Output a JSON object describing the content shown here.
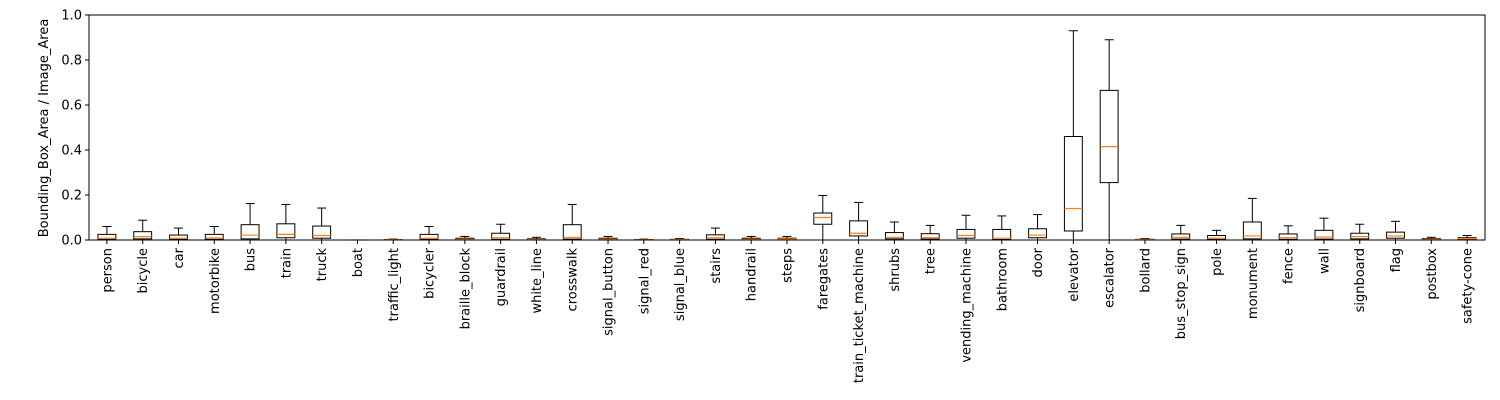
{
  "chart_data": {
    "type": "box",
    "title": "",
    "xlabel": "",
    "ylabel": "Bounding_Box_Area / Image_Area",
    "ylim": [
      0,
      1.0
    ],
    "yticks": [
      "0.0",
      "0.2",
      "0.4",
      "0.6",
      "0.8",
      "1.0"
    ],
    "grid": false,
    "colors": {
      "box": "#000000",
      "median": "#ff7f0e"
    },
    "categories": [
      "person",
      "bicycle",
      "car",
      "motorbike",
      "bus",
      "train",
      "truck",
      "boat",
      "traffic_light",
      "bicycler",
      "braille_block",
      "guardrail",
      "white_line",
      "crosswalk",
      "signal_button",
      "signal_red",
      "signal_blue",
      "stairs",
      "handrail",
      "steps",
      "faregates",
      "train_ticket_machine",
      "shrubs",
      "tree",
      "vending_machine",
      "bathroom",
      "door",
      "elevator",
      "escalator",
      "bollard",
      "bus_stop_sign",
      "pole",
      "monument",
      "fence",
      "wall",
      "signboard",
      "flag",
      "postbox",
      "safety-cone"
    ],
    "boxes": [
      {
        "min": 0.0,
        "q1": 0.003,
        "median": 0.008,
        "q3": 0.025,
        "max": 0.06
      },
      {
        "min": 0.0,
        "q1": 0.005,
        "median": 0.015,
        "q3": 0.037,
        "max": 0.088
      },
      {
        "min": 0.0,
        "q1": 0.003,
        "median": 0.008,
        "q3": 0.022,
        "max": 0.053
      },
      {
        "min": 0.0,
        "q1": 0.003,
        "median": 0.009,
        "q3": 0.025,
        "max": 0.06
      },
      {
        "min": 0.0,
        "q1": 0.005,
        "median": 0.022,
        "q3": 0.068,
        "max": 0.162
      },
      {
        "min": 0.0,
        "q1": 0.01,
        "median": 0.025,
        "q3": 0.072,
        "max": 0.158
      },
      {
        "min": 0.0,
        "q1": 0.008,
        "median": 0.02,
        "q3": 0.062,
        "max": 0.142
      },
      {
        "min": 0.0,
        "q1": 0.0,
        "median": 0.0,
        "q3": 0.0,
        "max": 0.0
      },
      {
        "min": 0.0,
        "q1": 0.0,
        "median": 0.001,
        "q3": 0.002,
        "max": 0.004
      },
      {
        "min": 0.0,
        "q1": 0.003,
        "median": 0.008,
        "q3": 0.025,
        "max": 0.06
      },
      {
        "min": 0.0,
        "q1": 0.001,
        "median": 0.003,
        "q3": 0.008,
        "max": 0.016
      },
      {
        "min": 0.0,
        "q1": 0.003,
        "median": 0.01,
        "q3": 0.03,
        "max": 0.07
      },
      {
        "min": 0.0,
        "q1": 0.001,
        "median": 0.002,
        "q3": 0.005,
        "max": 0.012
      },
      {
        "min": 0.0,
        "q1": 0.004,
        "median": 0.012,
        "q3": 0.068,
        "max": 0.158
      },
      {
        "min": 0.0,
        "q1": 0.001,
        "median": 0.004,
        "q3": 0.008,
        "max": 0.016
      },
      {
        "min": 0.0,
        "q1": 0.0,
        "median": 0.001,
        "q3": 0.002,
        "max": 0.004
      },
      {
        "min": 0.0,
        "q1": 0.001,
        "median": 0.002,
        "q3": 0.003,
        "max": 0.006
      },
      {
        "min": 0.0,
        "q1": 0.003,
        "median": 0.01,
        "q3": 0.023,
        "max": 0.053
      },
      {
        "min": 0.0,
        "q1": 0.001,
        "median": 0.004,
        "q3": 0.008,
        "max": 0.016
      },
      {
        "min": 0.0,
        "q1": 0.002,
        "median": 0.005,
        "q3": 0.008,
        "max": 0.016
      },
      {
        "min": 0.0,
        "q1": 0.07,
        "median": 0.1,
        "q3": 0.12,
        "max": 0.198
      },
      {
        "min": 0.0,
        "q1": 0.018,
        "median": 0.03,
        "q3": 0.085,
        "max": 0.167
      },
      {
        "min": 0.0,
        "q1": 0.005,
        "median": 0.012,
        "q3": 0.033,
        "max": 0.08
      },
      {
        "min": 0.0,
        "q1": 0.004,
        "median": 0.01,
        "q3": 0.028,
        "max": 0.065
      },
      {
        "min": 0.0,
        "q1": 0.008,
        "median": 0.02,
        "q3": 0.047,
        "max": 0.11
      },
      {
        "min": 0.0,
        "q1": 0.002,
        "median": 0.008,
        "q3": 0.047,
        "max": 0.107
      },
      {
        "min": 0.0,
        "q1": 0.01,
        "median": 0.022,
        "q3": 0.05,
        "max": 0.113
      },
      {
        "min": 0.0,
        "q1": 0.04,
        "median": 0.14,
        "q3": 0.46,
        "max": 0.93
      },
      {
        "min": 0.0,
        "q1": 0.255,
        "median": 0.415,
        "q3": 0.665,
        "max": 0.89
      },
      {
        "min": 0.0,
        "q1": 0.001,
        "median": 0.002,
        "q3": 0.003,
        "max": 0.006
      },
      {
        "min": 0.0,
        "q1": 0.004,
        "median": 0.012,
        "q3": 0.027,
        "max": 0.065
      },
      {
        "min": 0.0,
        "q1": 0.003,
        "median": 0.008,
        "q3": 0.02,
        "max": 0.043
      },
      {
        "min": 0.0,
        "q1": 0.005,
        "median": 0.018,
        "q3": 0.08,
        "max": 0.185
      },
      {
        "min": 0.0,
        "q1": 0.003,
        "median": 0.01,
        "q3": 0.027,
        "max": 0.063
      },
      {
        "min": 0.0,
        "q1": 0.004,
        "median": 0.013,
        "q3": 0.043,
        "max": 0.097
      },
      {
        "min": 0.0,
        "q1": 0.005,
        "median": 0.015,
        "q3": 0.03,
        "max": 0.07
      },
      {
        "min": 0.0,
        "q1": 0.008,
        "median": 0.018,
        "q3": 0.035,
        "max": 0.083
      },
      {
        "min": 0.0,
        "q1": 0.001,
        "median": 0.003,
        "q3": 0.006,
        "max": 0.012
      },
      {
        "min": 0.0,
        "q1": 0.002,
        "median": 0.006,
        "q3": 0.01,
        "max": 0.02
      }
    ]
  }
}
